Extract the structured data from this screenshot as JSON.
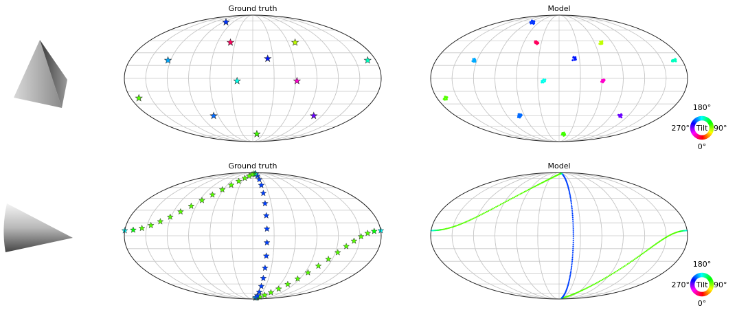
{
  "chart_data": [
    {
      "type": "scatter",
      "title": "Ground truth",
      "projection": "mollweide",
      "grid": true,
      "marker": "star",
      "points": [
        {
          "lon": -82,
          "lat": 73,
          "tilt": 228
        },
        {
          "lon": -38,
          "lat": 43,
          "tilt": 338
        },
        {
          "lon": 72,
          "lat": 43,
          "tilt": 75
        },
        {
          "lon": -124,
          "lat": 21,
          "tilt": 200
        },
        {
          "lon": 22,
          "lat": 23,
          "tilt": 235
        },
        {
          "lon": 168,
          "lat": 21,
          "tilt": 165
        },
        {
          "lon": -22,
          "lat": -3,
          "tilt": 175
        },
        {
          "lon": 62,
          "lat": -3,
          "tilt": 312
        },
        {
          "lon": -168,
          "lat": -23,
          "tilt": 100
        },
        {
          "lon": -68,
          "lat": -45,
          "tilt": 215
        },
        {
          "lon": 106,
          "lat": -45,
          "tilt": 265
        },
        {
          "lon": 12,
          "lat": -72,
          "tilt": 105
        }
      ]
    },
    {
      "type": "scatter",
      "title": "Model",
      "projection": "mollweide",
      "grid": true,
      "marker": "dot",
      "points": [
        {
          "lon": -82,
          "lat": 73,
          "tilt": 228
        },
        {
          "lon": -38,
          "lat": 43,
          "tilt": 338
        },
        {
          "lon": 72,
          "lat": 43,
          "tilt": 75
        },
        {
          "lon": -124,
          "lat": 21,
          "tilt": 200
        },
        {
          "lon": 22,
          "lat": 23,
          "tilt": 235
        },
        {
          "lon": 168,
          "lat": 21,
          "tilt": 165
        },
        {
          "lon": -22,
          "lat": -3,
          "tilt": 175
        },
        {
          "lon": 62,
          "lat": -3,
          "tilt": 312
        },
        {
          "lon": -168,
          "lat": -23,
          "tilt": 100
        },
        {
          "lon": -68,
          "lat": -45,
          "tilt": 215
        },
        {
          "lon": 106,
          "lat": -45,
          "tilt": 265
        },
        {
          "lon": 12,
          "lat": -72,
          "tilt": 105
        }
      ]
    },
    {
      "type": "scatter",
      "title": "Ground truth",
      "projection": "mollweide",
      "grid": true,
      "marker": "star",
      "curves": [
        {
          "from": {
            "lon": 20,
            "lat": -86
          },
          "to": {
            "lon": 180,
            "lat": 6
          },
          "tilt": 100
        },
        {
          "from": {
            "lon": 20,
            "lat": -86
          },
          "to": {
            "lon": 20,
            "lat": 86
          },
          "tilt": 225
        },
        {
          "from": {
            "lon": 20,
            "lat": 86
          },
          "to": {
            "lon": -180,
            "lat": 6
          },
          "tilt": 100
        }
      ],
      "curve_tilt_ends": 180
    },
    {
      "type": "scatter",
      "title": "Model",
      "projection": "mollweide",
      "grid": true,
      "marker": "dot",
      "curves": [
        {
          "from": {
            "lon": 20,
            "lat": -86
          },
          "to": {
            "lon": 180,
            "lat": 6
          },
          "tilt": 100
        },
        {
          "from": {
            "lon": 20,
            "lat": -86
          },
          "to": {
            "lon": 20,
            "lat": 86
          },
          "tilt": 225
        },
        {
          "from": {
            "lon": 20,
            "lat": 86
          },
          "to": {
            "lon": -180,
            "lat": 6
          },
          "tilt": 100
        }
      ],
      "curve_tilt_ends": 180
    }
  ],
  "colorwheel": {
    "center_label": "Tilt",
    "top_label": "180°",
    "left_label": "270°",
    "right_label": "90°",
    "bottom_label": "0°"
  }
}
